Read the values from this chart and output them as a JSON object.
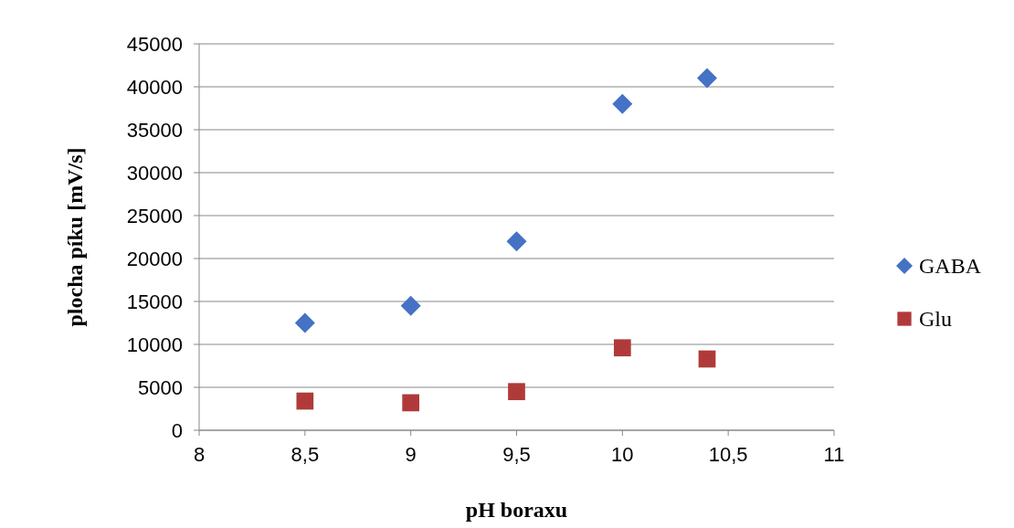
{
  "chart_data": {
    "type": "scatter",
    "xlabel": "pH boraxu",
    "ylabel": "plocha píku [mV/s]",
    "xlim": [
      8,
      11
    ],
    "xticks": [
      8,
      {
        "value": 8.5,
        "label": "8,5"
      },
      9,
      {
        "value": 9.5,
        "label": "9,5"
      },
      10,
      {
        "value": 10.5,
        "label": "10,5"
      },
      11
    ],
    "ylim": [
      0,
      45000
    ],
    "yticks": [
      0,
      5000,
      10000,
      15000,
      20000,
      25000,
      30000,
      35000,
      40000,
      45000
    ],
    "grid": "y",
    "legend": "right",
    "series": [
      {
        "name": "GABA",
        "color": "#4472c4",
        "marker": "diamond",
        "x": [
          8.5,
          9,
          9.5,
          10,
          10.4
        ],
        "values": [
          12500,
          14500,
          22000,
          38000,
          41000
        ]
      },
      {
        "name": "Glu",
        "color": "#b03a3a",
        "marker": "square",
        "x": [
          8.5,
          9,
          9.5,
          10,
          10.4
        ],
        "values": [
          3400,
          3200,
          4500,
          9600,
          8300
        ]
      }
    ]
  }
}
